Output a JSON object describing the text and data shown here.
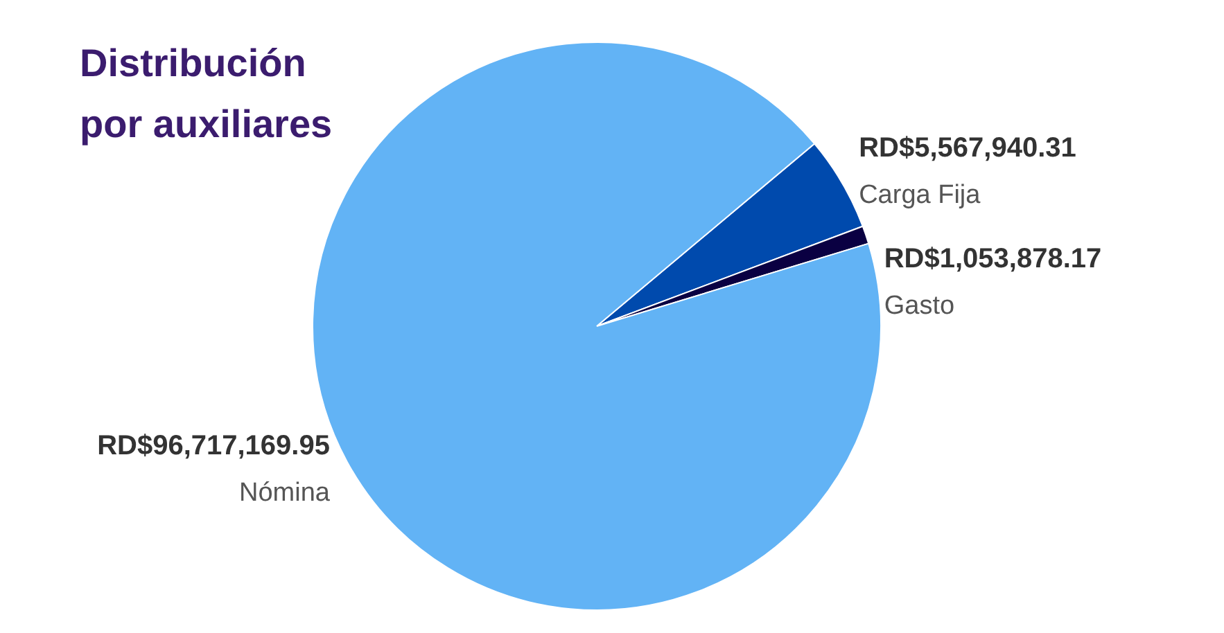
{
  "chart_data": {
    "type": "pie",
    "title": "Distribución\npor auxiliares",
    "categories": [
      "Carga Fija",
      "Gasto",
      "Nómina"
    ],
    "values": [
      5567940.31,
      1053878.17,
      96717169.95
    ],
    "value_labels": [
      "RD$5,567,940.31",
      "RD$1,053,878.17",
      "RD$96,717,169.95"
    ],
    "colors": [
      "#004aad",
      "#0a0042",
      "#62b3f5"
    ]
  }
}
